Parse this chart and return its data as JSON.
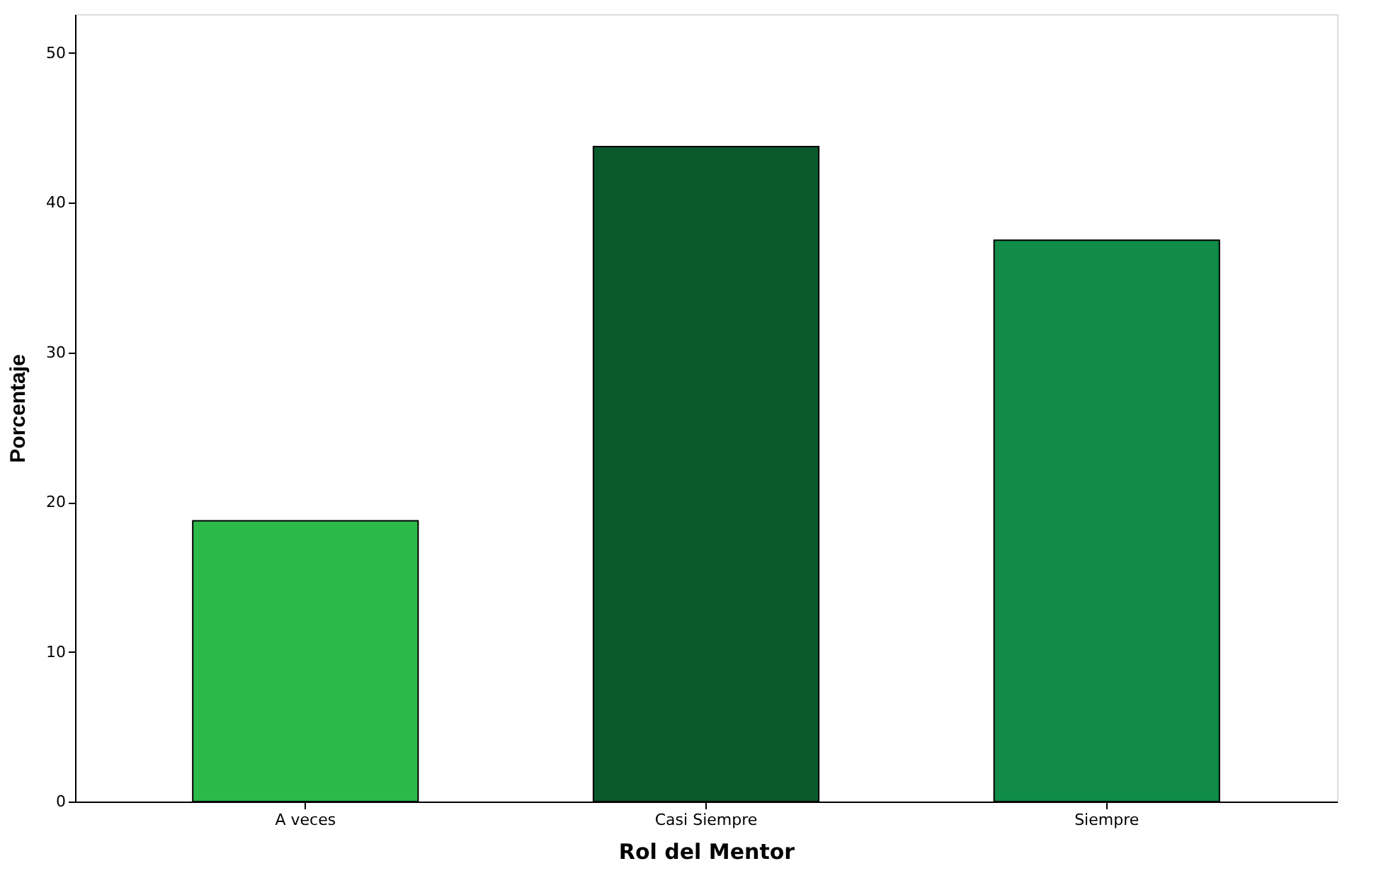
{
  "chart_data": {
    "type": "bar",
    "xlabel": "Rol del Mentor",
    "ylabel": "Porcentaje",
    "categories": [
      "A veces",
      "Casi Siempre",
      "Siempre"
    ],
    "values": [
      18.75,
      43.75,
      37.5
    ],
    "colors": [
      "#2db84a",
      "#0a5a2e",
      "#108b48"
    ],
    "ylim": [
      0,
      52.6
    ],
    "yticks": [
      0,
      10,
      20,
      30,
      40,
      50
    ],
    "grid": false
  }
}
